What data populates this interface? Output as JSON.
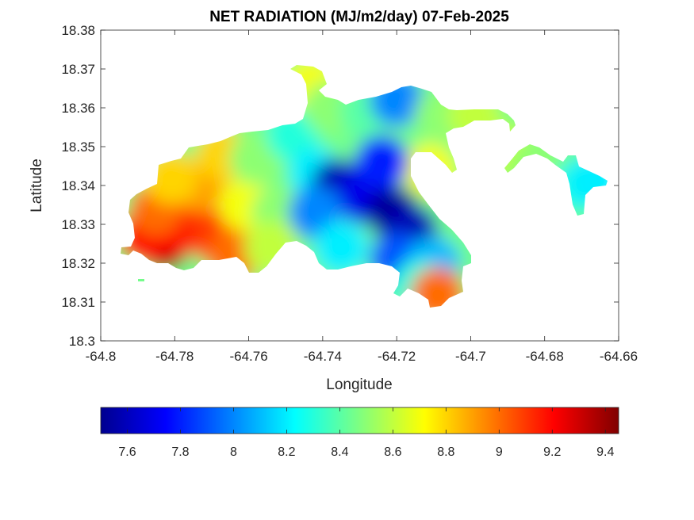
{
  "chart_data": {
    "type": "heatmap",
    "title": "NET RADIATION (MJ/m2/day) 07-Feb-2025",
    "xlabel": "Longitude",
    "ylabel": "Latitude",
    "xlim": [
      -64.8,
      -64.66
    ],
    "ylim": [
      18.3,
      18.38
    ],
    "xticks": [
      -64.8,
      -64.78,
      -64.76,
      -64.74,
      -64.72,
      -64.7,
      -64.68,
      -64.66
    ],
    "xtick_labels": [
      "-64.8",
      "-64.78",
      "-64.76",
      "-64.74",
      "-64.72",
      "-64.7",
      "-64.68",
      "-64.66"
    ],
    "yticks": [
      18.3,
      18.31,
      18.32,
      18.33,
      18.34,
      18.35,
      18.36,
      18.37,
      18.38
    ],
    "ytick_labels": [
      "18.3",
      "18.31",
      "18.32",
      "18.33",
      "18.34",
      "18.35",
      "18.36",
      "18.37",
      "18.38"
    ],
    "grid": false,
    "colormap": "jet",
    "clim": [
      7.5,
      9.45
    ],
    "colorbar": {
      "location": "bottom",
      "ticks": [
        7.6,
        7.8,
        8,
        8.2,
        8.4,
        8.6,
        8.8,
        9,
        9.2,
        9.4
      ],
      "tick_labels": [
        "7.6",
        "7.8",
        "8",
        "8.2",
        "8.4",
        "8.6",
        "8.8",
        "9",
        "9.2",
        "9.4"
      ]
    },
    "regions": [
      {
        "lon": -64.783,
        "lat": 18.325,
        "value": 9.4
      },
      {
        "lon": -64.788,
        "lat": 18.327,
        "value": 9.2
      },
      {
        "lon": -64.779,
        "lat": 18.329,
        "value": 9.2
      },
      {
        "lon": -64.769,
        "lat": 18.327,
        "value": 9.1
      },
      {
        "lon": -64.785,
        "lat": 18.334,
        "value": 9.0
      },
      {
        "lon": -64.764,
        "lat": 18.322,
        "value": 9.0
      },
      {
        "lon": -64.773,
        "lat": 18.34,
        "value": 8.9
      },
      {
        "lon": -64.781,
        "lat": 18.342,
        "value": 8.8
      },
      {
        "lon": -64.767,
        "lat": 18.348,
        "value": 8.8
      },
      {
        "lon": -64.761,
        "lat": 18.335,
        "value": 8.7
      },
      {
        "lon": -64.758,
        "lat": 18.347,
        "value": 8.5
      },
      {
        "lon": -64.752,
        "lat": 18.333,
        "value": 8.5
      },
      {
        "lon": -64.754,
        "lat": 18.324,
        "value": 8.6
      },
      {
        "lon": -64.748,
        "lat": 18.353,
        "value": 8.3
      },
      {
        "lon": -64.743,
        "lat": 18.366,
        "value": 8.7
      },
      {
        "lon": -64.738,
        "lat": 18.36,
        "value": 8.5
      },
      {
        "lon": -64.728,
        "lat": 18.359,
        "value": 8.4
      },
      {
        "lon": -64.72,
        "lat": 18.362,
        "value": 8.0
      },
      {
        "lon": -64.708,
        "lat": 18.358,
        "value": 8.5
      },
      {
        "lon": -64.699,
        "lat": 18.358,
        "value": 8.6
      },
      {
        "lon": -64.69,
        "lat": 18.349,
        "value": 8.6
      },
      {
        "lon": -64.682,
        "lat": 18.345,
        "value": 8.5
      },
      {
        "lon": -64.671,
        "lat": 18.34,
        "value": 8.3
      },
      {
        "lon": -64.667,
        "lat": 18.341,
        "value": 8.2
      },
      {
        "lon": -64.711,
        "lat": 18.344,
        "value": 8.7
      },
      {
        "lon": -64.742,
        "lat": 18.343,
        "value": 8.2
      },
      {
        "lon": -64.736,
        "lat": 18.34,
        "value": 7.6
      },
      {
        "lon": -64.729,
        "lat": 18.337,
        "value": 7.7
      },
      {
        "lon": -64.721,
        "lat": 18.333,
        "value": 7.55
      },
      {
        "lon": -64.716,
        "lat": 18.328,
        "value": 7.6
      },
      {
        "lon": -64.724,
        "lat": 18.346,
        "value": 7.8
      },
      {
        "lon": -64.742,
        "lat": 18.333,
        "value": 8.0
      },
      {
        "lon": -64.735,
        "lat": 18.324,
        "value": 8.2
      },
      {
        "lon": -64.72,
        "lat": 18.321,
        "value": 7.9
      },
      {
        "lon": -64.71,
        "lat": 18.32,
        "value": 8.1
      },
      {
        "lon": -64.714,
        "lat": 18.314,
        "value": 8.3
      },
      {
        "lon": -64.709,
        "lat": 18.312,
        "value": 9.0
      }
    ]
  }
}
